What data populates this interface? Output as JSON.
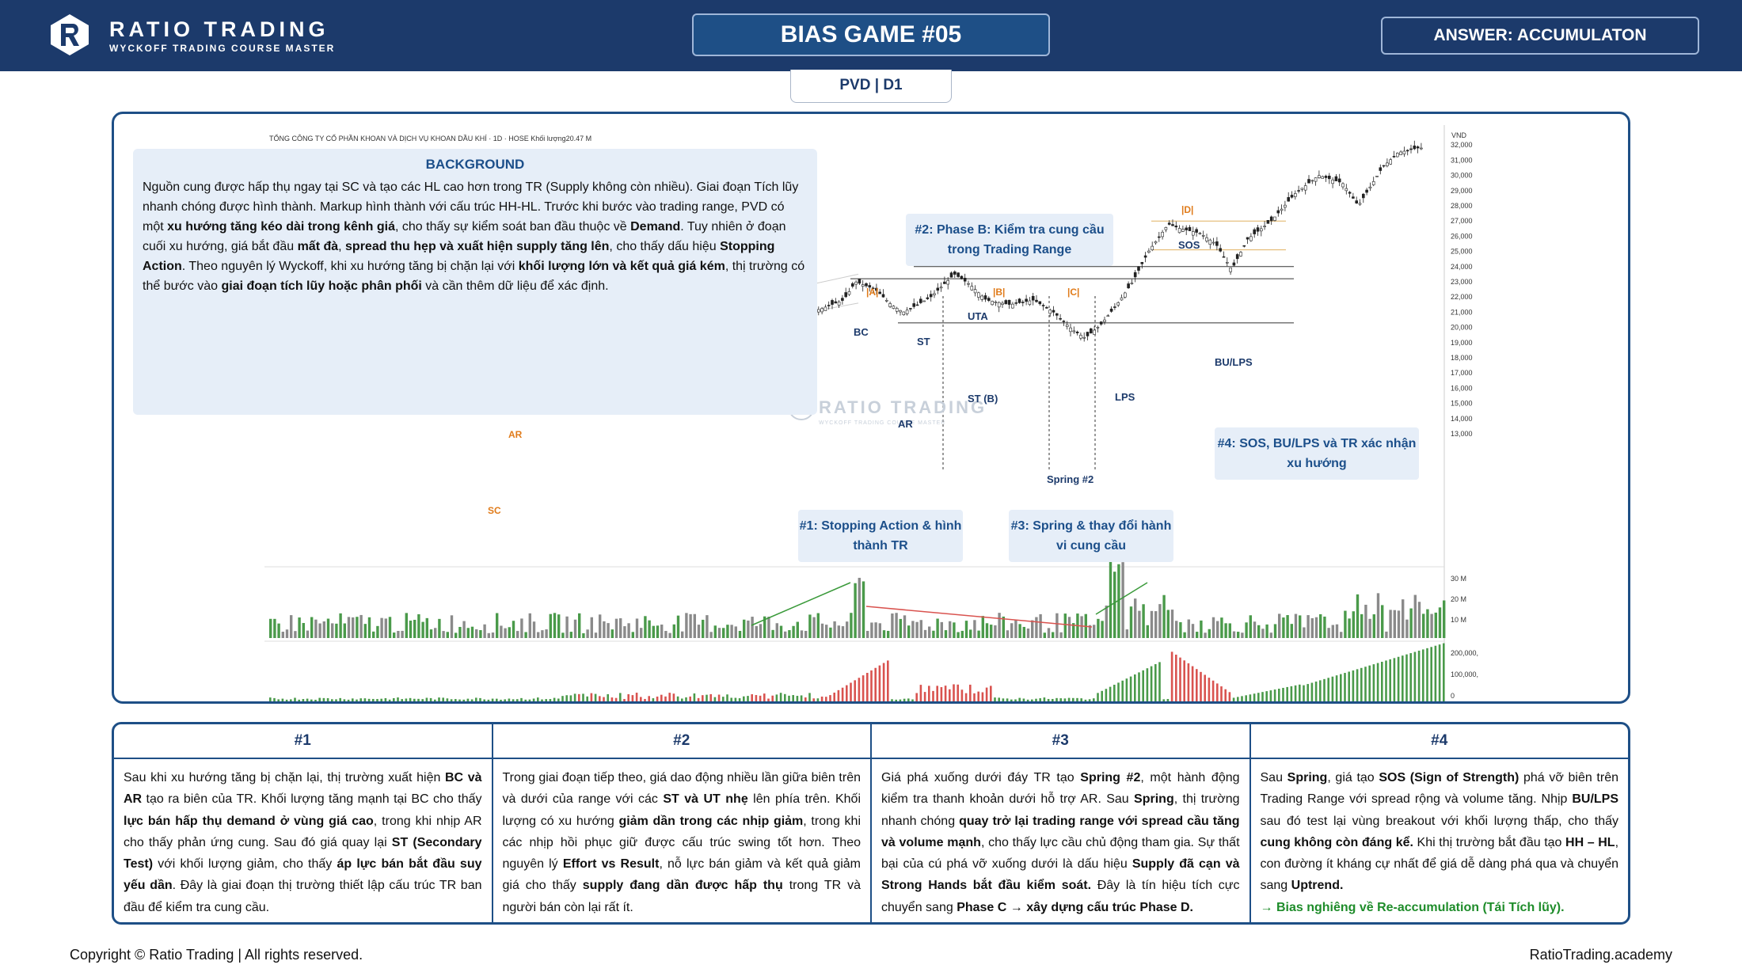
{
  "brand": {
    "name": "RATIO TRADING",
    "tagline": "WYCKOFF TRADING COURSE MASTER"
  },
  "header": {
    "title": "BIAS GAME #05",
    "answer": "ANSWER: ACCUMULATON"
  },
  "ticker": "PVD | D1",
  "chart": {
    "company_title": "TỔNG CÔNG TY CỔ PHẦN KHOAN VÀ DỊCH VỤ KHOAN DẦU KHÍ · 1D · HOSE  Khối lượng20.47 M",
    "watermark": "RATIO TRADING",
    "watermark_sub": "WYCKOFF TRADING COURSE MASTER",
    "price_unit": "VND",
    "price_ticks": [
      "32,000",
      "31,000",
      "30,000",
      "29,000",
      "28,000",
      "27,000",
      "26,000",
      "25,000",
      "24,000",
      "23,000",
      "22,000",
      "21,000",
      "20,000",
      "19,000",
      "18,000",
      "17,000",
      "16,000",
      "15,000",
      "14,000",
      "13,000"
    ],
    "volume_ticks": [
      "30 M",
      "20 M",
      "10 M"
    ],
    "indicator_ticks": [
      "200,000,",
      "100,000,",
      "0"
    ],
    "background_title": "BACKGROUND",
    "labels": {
      "ar_left": "AR",
      "sc": "SC",
      "bc": "BC",
      "ar": "AR",
      "st": "ST",
      "uta": "UTA",
      "st_b": "ST (B)",
      "phase_a": "|A|",
      "phase_b": "|B|",
      "phase_c": "|C|",
      "phase_d": "|D|",
      "spring2": "Spring #2",
      "lps": "LPS",
      "sos": "SOS",
      "bu_lps": "BU/LPS"
    },
    "notes": {
      "n1": "#1: Stopping Action & hình thành TR",
      "n2": "#2: Phase B: Kiểm tra cung cầu trong Trading Range",
      "n3": "#3: Spring & thay đổi hành vi cung cầu",
      "n4": "#4: SOS, BU/LPS và TR xác nhận xu hướng"
    }
  },
  "sections": [
    {
      "head": "#1"
    },
    {
      "head": "#2"
    },
    {
      "head": "#3"
    },
    {
      "head": "#4"
    }
  ],
  "footer": {
    "copyright": "Copyright © Ratio Trading | All rights reserved.",
    "site": "RatioTrading.academy"
  },
  "colors": {
    "navy": "#1c3a6b",
    "up": "#4a9a4a",
    "down": "#d9534f",
    "accent_orange": "#e07b1a"
  }
}
